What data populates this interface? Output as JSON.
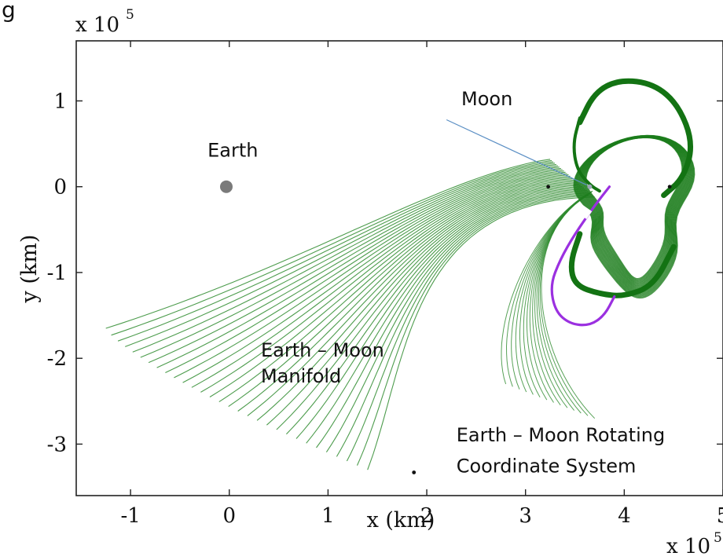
{
  "figure_label": "g",
  "chart_data": {
    "type": "line",
    "title": "",
    "xlabel": "x (km)",
    "ylabel": "y (km)",
    "x_exponent": "x 10",
    "x_exponent_power": "5",
    "y_exponent": "x 10",
    "y_exponent_power": "5",
    "xlim": [
      -1.55,
      5.0
    ],
    "ylim": [
      -3.6,
      1.7
    ],
    "x_scale_factor": 100000,
    "y_scale_factor": 100000,
    "xticks": [
      {
        "value": -1,
        "label": "-1"
      },
      {
        "value": 0,
        "label": "0"
      },
      {
        "value": 1,
        "label": "1"
      },
      {
        "value": 2,
        "label": "2"
      },
      {
        "value": 3,
        "label": "3"
      },
      {
        "value": 4,
        "label": "4"
      },
      {
        "value": 5,
        "label": "5"
      }
    ],
    "yticks": [
      {
        "value": 1,
        "label": "1"
      },
      {
        "value": 0,
        "label": "0"
      },
      {
        "value": -1,
        "label": "-1"
      },
      {
        "value": -2,
        "label": "-2"
      },
      {
        "value": -3,
        "label": "-3"
      }
    ],
    "grid": false,
    "bodies": [
      {
        "name": "Earth",
        "x": -0.03,
        "y": 0.0,
        "color": "#7a7a7a"
      },
      {
        "name": "Moon",
        "x": 3.65,
        "y": 0.0,
        "color": "#9aa7b5"
      }
    ],
    "points": [
      {
        "x": 3.23,
        "y": 0.0
      },
      {
        "x": 4.46,
        "y": 0.0
      },
      {
        "x": 1.87,
        "y": -3.33
      }
    ],
    "manifold": {
      "name": "Earth – Moon Manifold",
      "color": "#2e8b2e",
      "tail_count": 30,
      "tail_start_range": [
        [
          3.25,
          0.32
        ],
        [
          3.7,
          -0.12
        ]
      ],
      "tail_end_range": [
        [
          -1.25,
          -1.65
        ],
        [
          1.4,
          -3.3
        ]
      ],
      "loop_center": [
        4.1,
        -0.25
      ],
      "loop_count": 32
    },
    "transfer_arc": {
      "color": "#9b30e0",
      "x": [
        3.85,
        3.7,
        3.5,
        3.35,
        3.25,
        3.3,
        3.45,
        3.65,
        3.8,
        3.9
      ],
      "y": [
        0.0,
        -0.22,
        -0.55,
        -0.85,
        -1.15,
        -1.45,
        -1.6,
        -1.62,
        -1.5,
        -1.28
      ]
    },
    "annotations": [
      {
        "text": "Earth",
        "x": -0.22,
        "y": 0.35
      },
      {
        "text": "Moon",
        "x": 2.35,
        "y": 0.95
      },
      {
        "text": "Earth – Moon",
        "x": 0.32,
        "y": -1.98
      },
      {
        "text": "Manifold",
        "x": 0.32,
        "y": -2.28
      },
      {
        "text": "Earth – Moon Rotating",
        "x": 2.3,
        "y": -2.97
      },
      {
        "text": "Coordinate System",
        "x": 2.3,
        "y": -3.33
      }
    ]
  }
}
